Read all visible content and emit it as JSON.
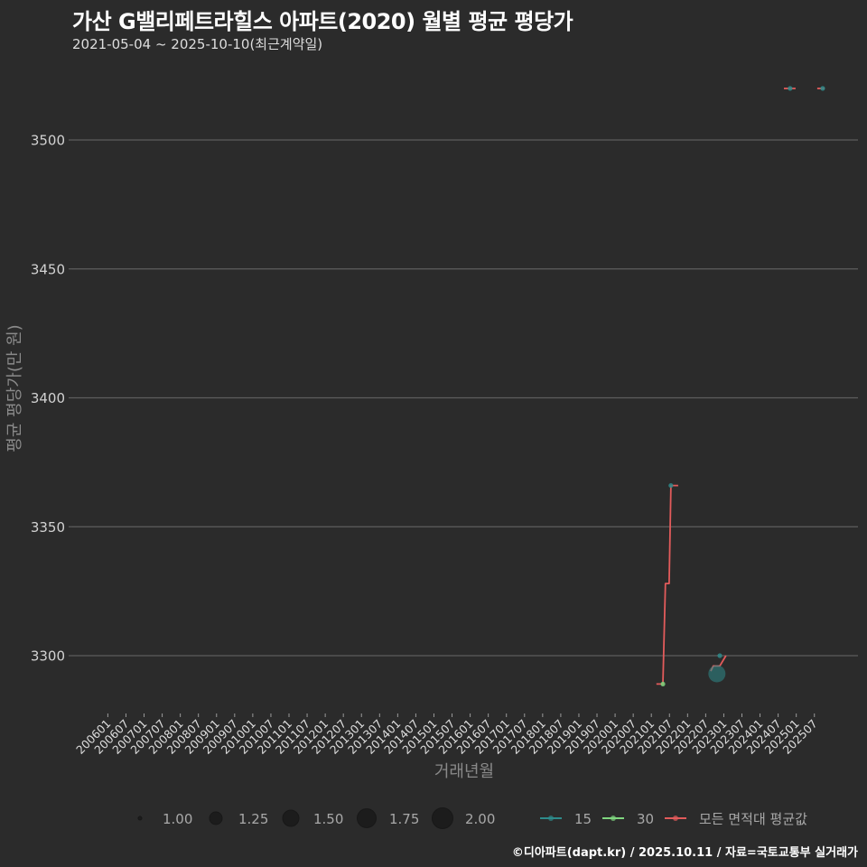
{
  "header": {
    "title": "가산 G밸리페트라힐스 아파트(2020) 월별 평균 평당가",
    "subtitle": "2021-05-04 ~ 2025-10-10(최근계약일)"
  },
  "caption": "©디아파트(dapt.kr) / 2025.10.11 / 자료=국토교통부 실거래가",
  "colors": {
    "background": "#2b2b2b",
    "grid": "#5e5e5e",
    "series_15": "#2e8b8b",
    "series_30": "#7fd67f",
    "series_avg": "#e25b5b",
    "size_point": "#1c1c1c"
  },
  "chart_data": {
    "type": "line",
    "title": "가산 G밸리페트라힐스 아파트(2020) 월별 평균 평당가",
    "subtitle": "2021-05-04 ~ 2025-10-10(최근계약일)",
    "xlabel": "거래년월",
    "ylabel": "평균 평당가(만 원)",
    "ylim": [
      3277,
      3530
    ],
    "xlim": [
      2005.0,
      2026.7
    ],
    "grid": true,
    "yticks": [
      3300,
      3350,
      3400,
      3450,
      3500
    ],
    "ytick_labels": [
      "3300",
      "3350",
      "3400",
      "3450",
      "3500"
    ],
    "categories": [
      "200601",
      "200607",
      "200701",
      "200707",
      "200801",
      "200807",
      "200901",
      "200907",
      "201001",
      "201007",
      "201101",
      "201107",
      "201201",
      "201207",
      "201301",
      "201307",
      "201401",
      "201407",
      "201501",
      "201507",
      "201601",
      "201607",
      "201701",
      "201707",
      "201801",
      "201807",
      "201901",
      "201907",
      "202001",
      "202007",
      "202101",
      "202107",
      "202201",
      "202207",
      "202301",
      "202307",
      "202401",
      "202407",
      "202501",
      "202507"
    ],
    "series": [
      {
        "name": "모든 면적대 평균값",
        "color": "#e25b5b",
        "style": "step-line",
        "segments": [
          [
            [
              2021.14,
              3289
            ],
            [
              2021.32,
              3289
            ],
            [
              2021.39,
              3328
            ],
            [
              2021.49,
              3328
            ],
            [
              2021.54,
              3366
            ],
            [
              2021.74,
              3366
            ]
          ],
          [
            [
              2022.64,
              3294
            ],
            [
              2022.71,
              3296
            ],
            [
              2022.89,
              3296
            ],
            [
              2023.06,
              3300
            ]
          ],
          [
            [
              2024.66,
              3520
            ],
            [
              2024.98,
              3520
            ]
          ],
          [
            [
              2025.58,
              3520
            ],
            [
              2025.78,
              3520
            ]
          ]
        ]
      },
      {
        "name": "15",
        "color": "#2e8b8b",
        "style": "points",
        "points": [
          {
            "x": 2021.54,
            "y": 3366,
            "size": 1.0
          },
          {
            "x": 2022.81,
            "y": 3293,
            "size": 2.0
          },
          {
            "x": 2022.89,
            "y": 3300,
            "size": 1.0
          },
          {
            "x": 2024.83,
            "y": 3520,
            "size": 1.0
          },
          {
            "x": 2025.73,
            "y": 3520,
            "size": 1.0
          }
        ]
      },
      {
        "name": "30",
        "color": "#7fd67f",
        "style": "points",
        "points": [
          {
            "x": 2021.32,
            "y": 3289,
            "size": 1.0
          }
        ]
      }
    ],
    "legend": {
      "position": "bottom",
      "size_title": "",
      "size_entries": [
        {
          "label": "1.00",
          "value": 1.0
        },
        {
          "label": "1.25",
          "value": 1.25
        },
        {
          "label": "1.50",
          "value": 1.5
        },
        {
          "label": "1.75",
          "value": 1.75
        },
        {
          "label": "2.00",
          "value": 2.0
        }
      ],
      "color_entries": [
        {
          "label": "15",
          "color": "#2e8b8b"
        },
        {
          "label": "30",
          "color": "#7fd67f"
        },
        {
          "label": "모든 면적대 평균값",
          "color": "#e25b5b"
        }
      ]
    }
  }
}
